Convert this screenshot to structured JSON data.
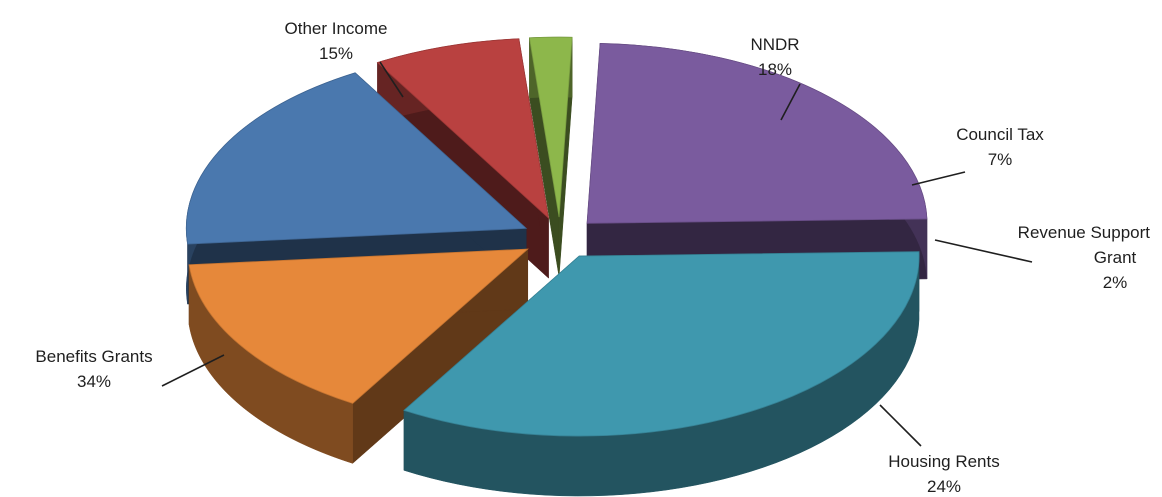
{
  "chart_data": {
    "type": "pie",
    "style": "3d-exploded",
    "title": "",
    "legend": "none",
    "slices": [
      {
        "name": "NNDR",
        "label_lines": [
          "NNDR"
        ],
        "value": 18,
        "pct_label": "18%",
        "color": "#4A78AE"
      },
      {
        "name": "Council Tax",
        "label_lines": [
          "Council Tax"
        ],
        "value": 7,
        "pct_label": "7%",
        "color": "#B94140"
      },
      {
        "name": "Revenue Support Grant",
        "label_lines": [
          "Revenue Support",
          "Grant"
        ],
        "value": 2,
        "pct_label": "2%",
        "color": "#8DB74B"
      },
      {
        "name": "Housing Rents",
        "label_lines": [
          "Housing Rents"
        ],
        "value": 24,
        "pct_label": "24%",
        "color": "#7A5B9E"
      },
      {
        "name": "Benefits Grants",
        "label_lines": [
          "Benefits Grants"
        ],
        "value": 34,
        "pct_label": "34%",
        "color": "#3F98AE"
      },
      {
        "name": "Other Income",
        "label_lines": [
          "Other Income"
        ],
        "value": 15,
        "pct_label": "15%",
        "color": "#E6883A"
      }
    ]
  }
}
